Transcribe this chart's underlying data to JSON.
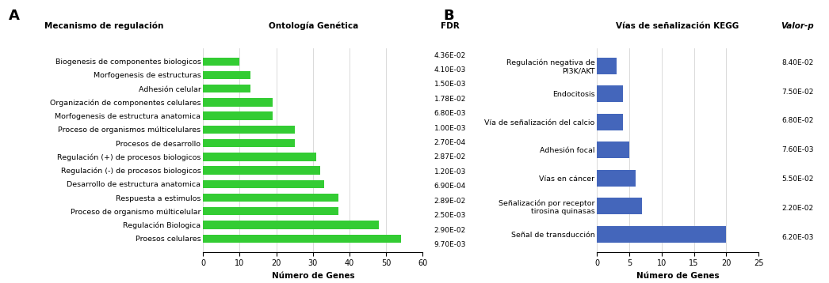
{
  "panel_a": {
    "title_col1": "Mecanismo de regulación",
    "title_col2": "Ontología Genética",
    "title_col3": "FDR",
    "xlabel": "Número de Genes",
    "panel_label": "A",
    "categories": [
      "Biogenesis de componentes biologicos",
      "Morfogenesis de estructuras",
      "Adhesión celular",
      "Organización de componentes celulares",
      "Morfogenesis de estructura anatomica",
      "Proceso de organismos múlticelulares",
      "Procesos de desarrollo",
      "Regulación (+) de procesos biologicos",
      "Regulación (-) de procesos biologicos",
      "Desarrollo de estructura anatomica",
      "Respuesta a estimulos",
      "Proceso de organismo múlticelular",
      "Regulación Biologica",
      "Proesos celulares"
    ],
    "values": [
      10,
      13,
      13,
      19,
      19,
      25,
      25,
      31,
      32,
      33,
      37,
      37,
      48,
      54
    ],
    "fdr_values": [
      "4.36E-02",
      "4.10E-03",
      "1.50E-03",
      "1.78E-02",
      "6.80E-03",
      "1.00E-03",
      "2.70E-04",
      "2.87E-02",
      "1.20E-03",
      "6.90E-04",
      "2.89E-02",
      "2.50E-03",
      "2.90E-02",
      "9.70E-03"
    ],
    "bar_color": "#33cc33",
    "xlim": [
      0,
      60
    ],
    "xticks": [
      0,
      10,
      20,
      30,
      40,
      50,
      60
    ]
  },
  "panel_b": {
    "title": "Vías de señalización KEGG",
    "title_col3": "Valor-p",
    "xlabel": "Número de Genes",
    "panel_label": "B",
    "categories": [
      "Regulación negativa de\nPI3K/AKT",
      "Endocitosis",
      "Vía de señalización del calcio",
      "Adhesión focal",
      "Vías en cáncer",
      "Señalización por receptor\ntirosina quinasas",
      "Señal de transducción"
    ],
    "values": [
      3,
      4,
      4,
      5,
      6,
      7,
      20
    ],
    "p_values": [
      "8.40E-02",
      "7.50E-02",
      "6.80E-02",
      "7.60E-03",
      "5.50E-02",
      "2.20E-02",
      "6.20E-03"
    ],
    "bar_color": "#4466bb",
    "xlim": [
      0,
      25
    ],
    "xticks": [
      0,
      5,
      10,
      15,
      20,
      25
    ]
  },
  "background_color": "#ffffff",
  "grid_color": "#cccccc",
  "text_color": "#000000",
  "title_fontsize": 7.5,
  "label_fontsize": 6.8,
  "tick_fontsize": 7,
  "fdr_fontsize": 6.5,
  "panel_label_fontsize": 13
}
